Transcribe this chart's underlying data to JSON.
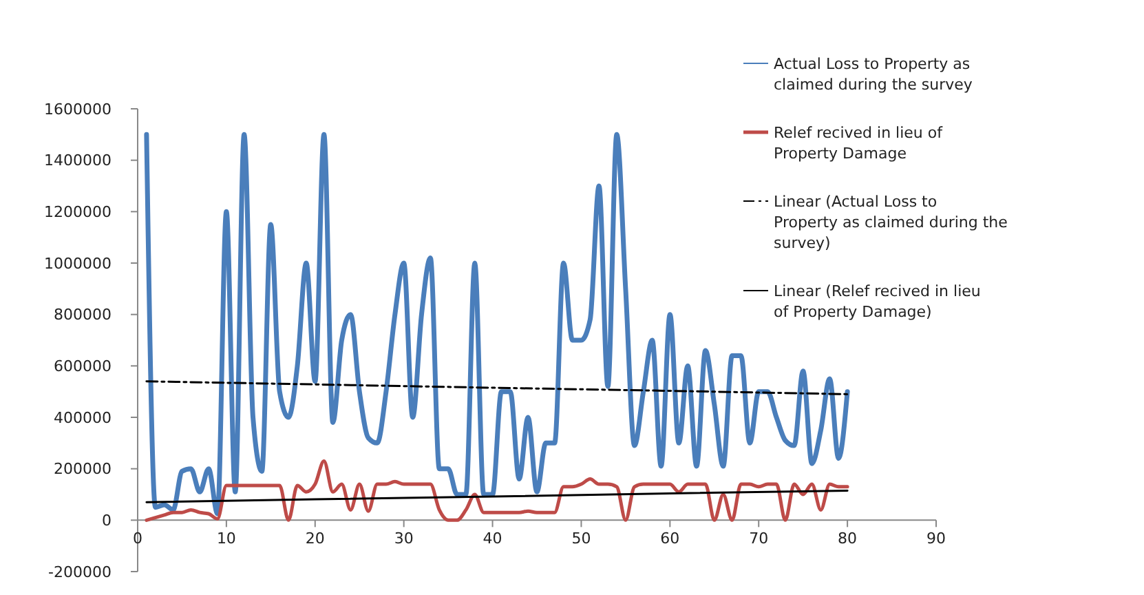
{
  "chart_data": {
    "type": "line",
    "xlim": [
      0,
      90
    ],
    "xticks": [
      0,
      10,
      20,
      30,
      40,
      50,
      60,
      70,
      80,
      90
    ],
    "ylim": [
      -200000,
      1600000
    ],
    "yticks": [
      -200000,
      0,
      200000,
      400000,
      600000,
      800000,
      1000000,
      1200000,
      1400000,
      1600000
    ],
    "grid": false,
    "legend": "top right",
    "x": [
      1,
      2,
      3,
      4,
      5,
      6,
      7,
      8,
      9,
      10,
      11,
      12,
      13,
      14,
      15,
      16,
      17,
      18,
      19,
      20,
      21,
      22,
      23,
      24,
      25,
      26,
      27,
      28,
      29,
      30,
      31,
      32,
      33,
      34,
      35,
      36,
      37,
      38,
      39,
      40,
      41,
      42,
      43,
      44,
      45,
      46,
      47,
      48,
      49,
      50,
      51,
      52,
      53,
      54,
      55,
      56,
      57,
      58,
      59,
      60,
      61,
      62,
      63,
      64,
      65,
      66,
      67,
      68,
      69,
      70,
      71,
      72,
      73,
      74,
      75,
      76,
      77,
      78,
      79,
      80
    ],
    "series": [
      {
        "name": "Actual Loss to Property as claimed during the survey",
        "color": "#4a7ebb",
        "values": [
          1500000,
          50000,
          60000,
          40000,
          190000,
          200000,
          110000,
          200000,
          25000,
          1200000,
          110000,
          1500000,
          400000,
          190000,
          1150000,
          500000,
          400000,
          600000,
          1000000,
          540000,
          1500000,
          380000,
          700000,
          800000,
          500000,
          320000,
          300000,
          500000,
          800000,
          1000000,
          400000,
          800000,
          1020000,
          200000,
          200000,
          100000,
          100000,
          1000000,
          100000,
          100000,
          500000,
          500000,
          160000,
          400000,
          110000,
          300000,
          300000,
          1000000,
          700000,
          700000,
          780000,
          1300000,
          520000,
          1500000,
          900000,
          290000,
          500000,
          700000,
          210000,
          800000,
          300000,
          600000,
          210000,
          660000,
          450000,
          210000,
          640000,
          640000,
          300000,
          500000,
          500000,
          400000,
          310000,
          290000,
          580000,
          220000,
          350000,
          550000,
          240000,
          500000
        ]
      },
      {
        "name": "Relef recived in lieu of Property Damage",
        "color": "#be4b48",
        "values": [
          0,
          10000,
          20000,
          30000,
          30000,
          40000,
          30000,
          25000,
          5000,
          135000,
          135000,
          135000,
          135000,
          135000,
          135000,
          135000,
          0,
          135000,
          110000,
          140000,
          230000,
          110000,
          140000,
          40000,
          140000,
          35000,
          140000,
          140000,
          150000,
          140000,
          140000,
          140000,
          140000,
          40000,
          0,
          0,
          40000,
          100000,
          30000,
          30000,
          30000,
          30000,
          30000,
          35000,
          30000,
          30000,
          30000,
          130000,
          130000,
          140000,
          160000,
          140000,
          140000,
          130000,
          0,
          130000,
          140000,
          140000,
          140000,
          140000,
          110000,
          140000,
          140000,
          140000,
          0,
          100000,
          0,
          140000,
          140000,
          130000,
          140000,
          140000,
          0,
          140000,
          100000,
          140000,
          40000,
          140000,
          130000,
          130000
        ]
      },
      {
        "name": "Linear (Actual Loss to Property as claimed during the survey)",
        "color": "#000000",
        "type": "line",
        "line_style": "dashed",
        "x": [
          1,
          20,
          40,
          60,
          80
        ],
        "values": [
          540000,
          528000,
          515000,
          503000,
          490000
        ]
      },
      {
        "name": "Linear (Relef recived in lieu of Property Damage)",
        "color": "#000000",
        "type": "line",
        "line_style": "solid",
        "x": [
          1,
          20,
          40,
          60,
          80
        ],
        "values": [
          70000,
          81000,
          92000,
          104000,
          115000
        ]
      }
    ]
  }
}
